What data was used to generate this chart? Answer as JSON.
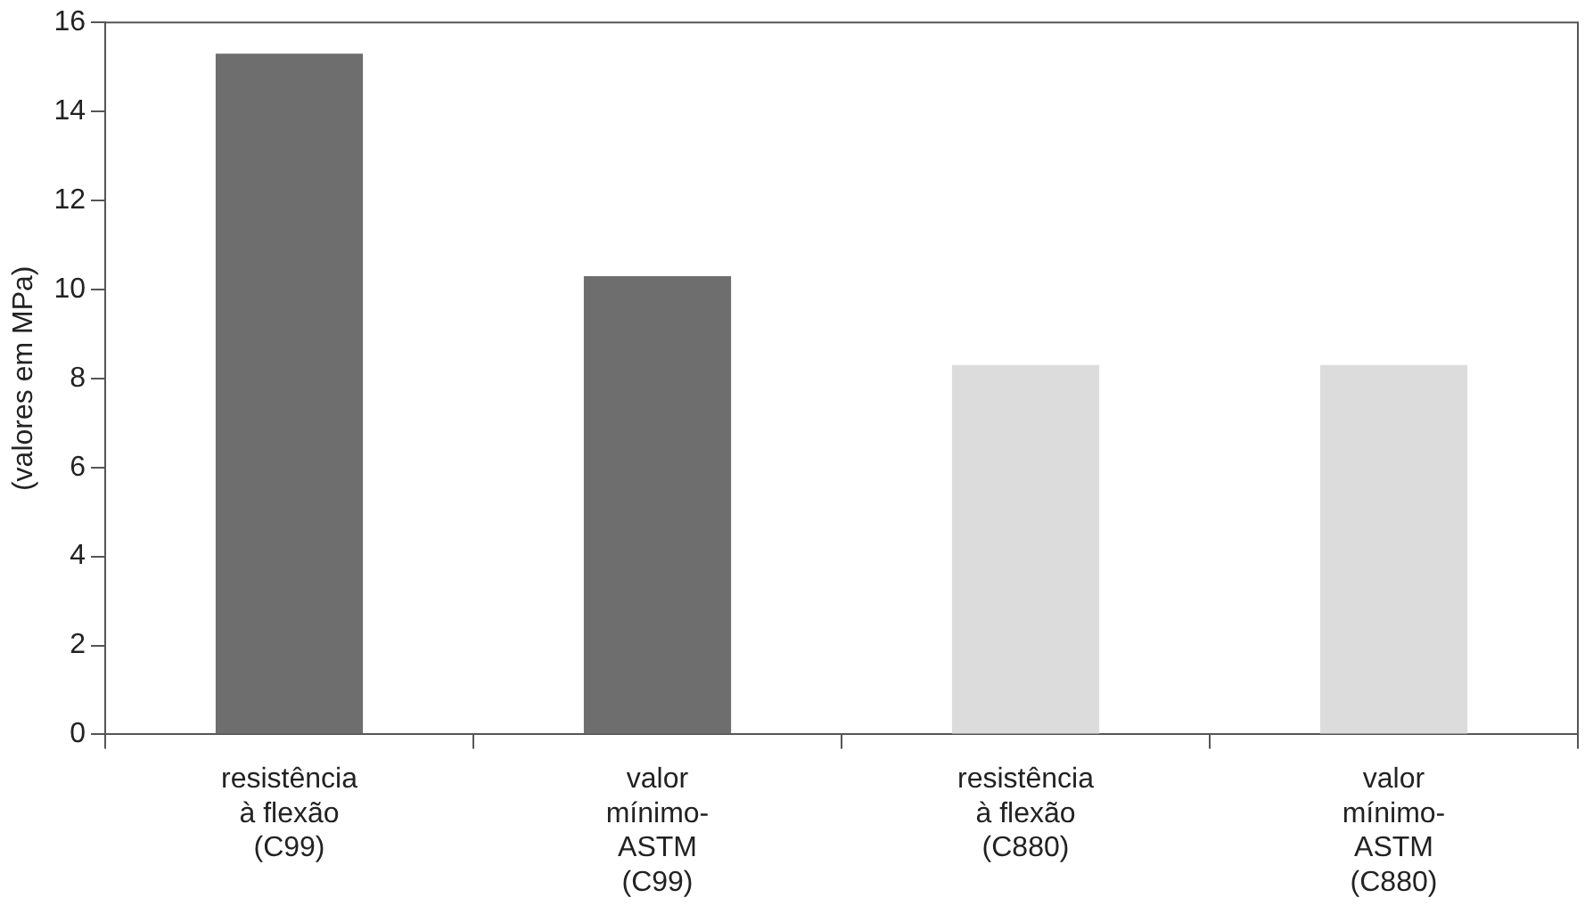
{
  "chart_data": {
    "type": "bar",
    "ylabel": "(valores em MPa)",
    "categories": [
      "resistência\nà flexão\n(C99)",
      "valor\nmínimo-\nASTM\n(C99)",
      "resistência\nà flexão\n(C880)",
      "valor\nmínimo-\nASTM\n(C880)"
    ],
    "values": [
      15.3,
      10.3,
      8.3,
      8.3
    ],
    "colors": [
      "#6e6e6e",
      "#6e6e6e",
      "#dcdcdc",
      "#dcdcdc"
    ],
    "ylim": [
      0,
      16
    ],
    "yticks": [
      0,
      2,
      4,
      6,
      8,
      10,
      12,
      14,
      16
    ],
    "grid": false,
    "legend": false
  }
}
